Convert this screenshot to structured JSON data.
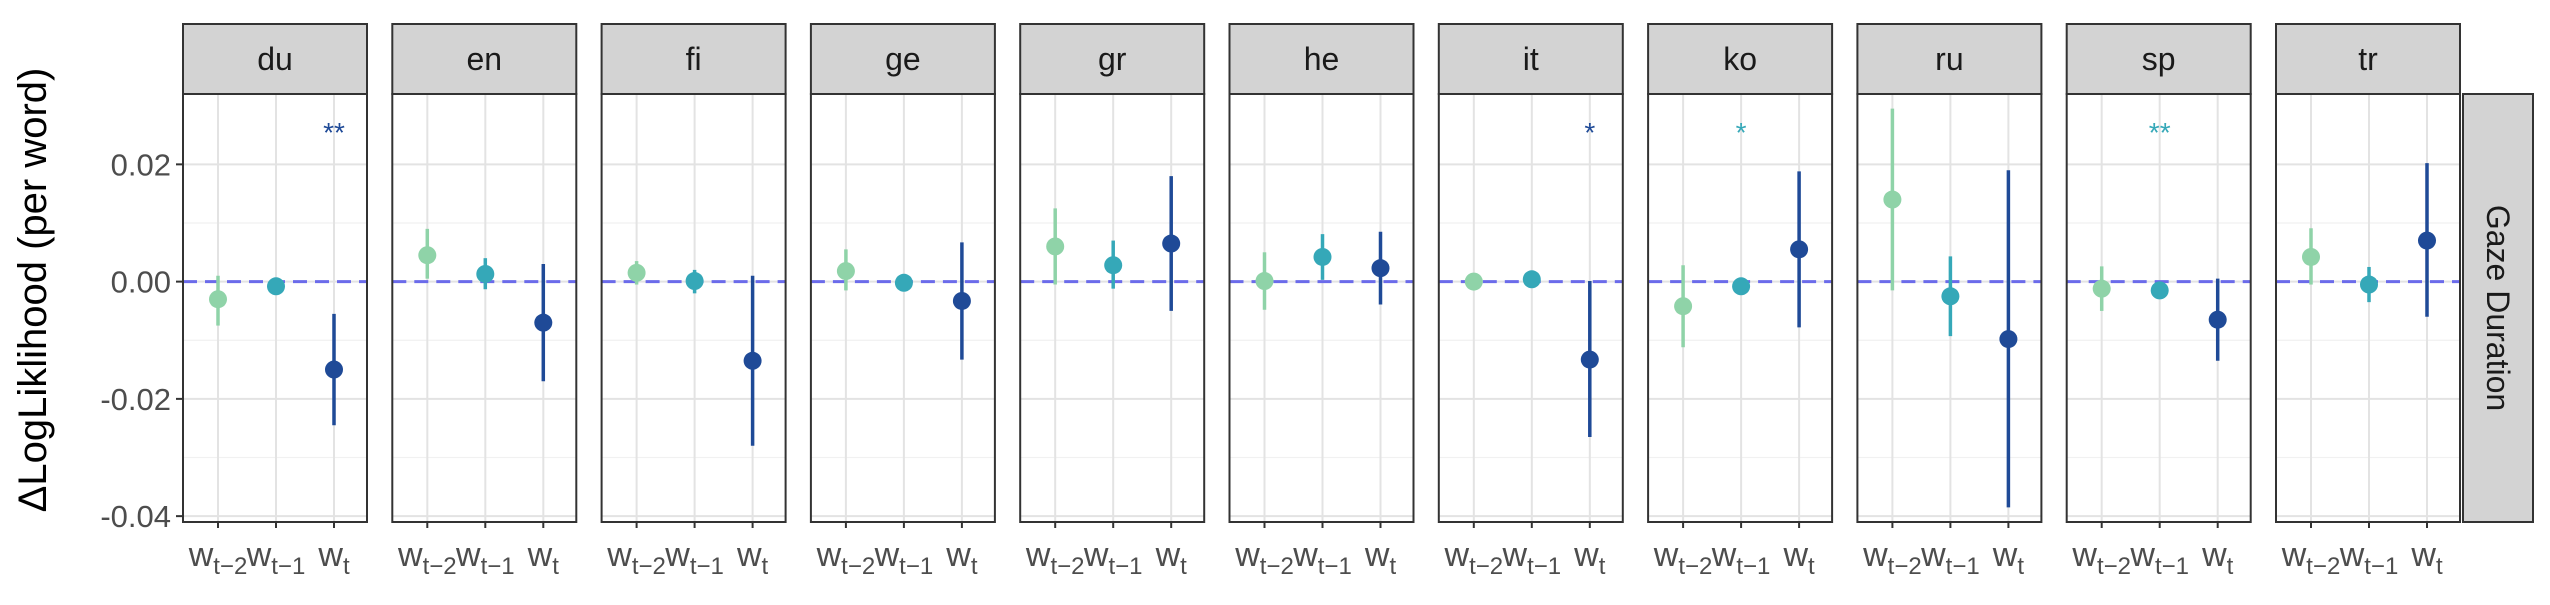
{
  "chart_data": {
    "type": "faceted-pointrange",
    "ylabel": "ΔLogLiklihood (per word)",
    "row_strip": "Gaze Duration",
    "ylim": [
      -0.041,
      0.032
    ],
    "yticks": [
      0.02,
      0.0,
      -0.02,
      -0.04
    ],
    "ytick_labels": [
      "0.02",
      "0.00",
      "-0.02",
      "-0.04"
    ],
    "reference_line": 0.0,
    "x_categories": [
      "w_{t-2}",
      "w_{t-1}",
      "w_t"
    ],
    "x_tick_labels": [
      {
        "base": "w",
        "sub": "t−2"
      },
      {
        "base": "w",
        "sub": "t−1"
      },
      {
        "base": "w",
        "sub": "t"
      }
    ],
    "colors": {
      "w_{t-2}": "#8fd3a8",
      "w_{t-1}": "#35a8b8",
      "w_t": "#1f4a97",
      "reference": "#6b6bea",
      "strip": "#d3d3d3"
    },
    "panels": [
      {
        "label": "du",
        "points": [
          {
            "x": "w_{t-2}",
            "y": -0.003,
            "lo": -0.0075,
            "hi": 0.001
          },
          {
            "x": "w_{t-1}",
            "y": -0.0008,
            "lo": -0.0015,
            "hi": -0.0001
          },
          {
            "x": "w_t",
            "y": -0.015,
            "lo": -0.0245,
            "hi": -0.0055
          }
        ],
        "sig": [
          {
            "x": "w_t",
            "label": "**"
          }
        ]
      },
      {
        "label": "en",
        "points": [
          {
            "x": "w_{t-2}",
            "y": 0.0045,
            "lo": 0.0005,
            "hi": 0.009
          },
          {
            "x": "w_{t-1}",
            "y": 0.0013,
            "lo": -0.0013,
            "hi": 0.004
          },
          {
            "x": "w_t",
            "y": -0.007,
            "lo": -0.017,
            "hi": 0.003
          }
        ],
        "sig": []
      },
      {
        "label": "fi",
        "points": [
          {
            "x": "w_{t-2}",
            "y": 0.0015,
            "lo": -0.0005,
            "hi": 0.0035
          },
          {
            "x": "w_{t-1}",
            "y": 0.0001,
            "lo": -0.002,
            "hi": 0.002
          },
          {
            "x": "w_t",
            "y": -0.0135,
            "lo": -0.028,
            "hi": 0.001
          }
        ],
        "sig": []
      },
      {
        "label": "ge",
        "points": [
          {
            "x": "w_{t-2}",
            "y": 0.0018,
            "lo": -0.0015,
            "hi": 0.0055
          },
          {
            "x": "w_{t-1}",
            "y": -0.0002,
            "lo": -0.001,
            "hi": 0.0006
          },
          {
            "x": "w_t",
            "y": -0.0033,
            "lo": -0.0133,
            "hi": 0.0067
          }
        ],
        "sig": []
      },
      {
        "label": "gr",
        "points": [
          {
            "x": "w_{t-2}",
            "y": 0.006,
            "lo": -0.0005,
            "hi": 0.0125
          },
          {
            "x": "w_{t-1}",
            "y": 0.0028,
            "lo": -0.0012,
            "hi": 0.007
          },
          {
            "x": "w_t",
            "y": 0.0065,
            "lo": -0.005,
            "hi": 0.018
          }
        ],
        "sig": []
      },
      {
        "label": "he",
        "points": [
          {
            "x": "w_{t-2}",
            "y": 0.0001,
            "lo": -0.0048,
            "hi": 0.005
          },
          {
            "x": "w_{t-1}",
            "y": 0.0042,
            "lo": 0.0003,
            "hi": 0.0081
          },
          {
            "x": "w_t",
            "y": 0.0023,
            "lo": -0.0039,
            "hi": 0.0085
          }
        ],
        "sig": []
      },
      {
        "label": "it",
        "points": [
          {
            "x": "w_{t-2}",
            "y": 0.0,
            "lo": -0.0008,
            "hi": 0.0008
          },
          {
            "x": "w_{t-1}",
            "y": 0.0004,
            "lo": -0.0004,
            "hi": 0.0012
          },
          {
            "x": "w_t",
            "y": -0.0133,
            "lo": -0.0265,
            "hi": 0.0001
          }
        ],
        "sig": [
          {
            "x": "w_t",
            "label": "*"
          }
        ]
      },
      {
        "label": "ko",
        "points": [
          {
            "x": "w_{t-2}",
            "y": -0.0042,
            "lo": -0.0112,
            "hi": 0.0028
          },
          {
            "x": "w_{t-1}",
            "y": -0.0008,
            "lo": -0.0015,
            "hi": -0.0001
          },
          {
            "x": "w_t",
            "y": 0.0055,
            "lo": -0.0078,
            "hi": 0.0188
          }
        ],
        "sig": [
          {
            "x": "w_{t-1}",
            "label": "*"
          }
        ]
      },
      {
        "label": "ru",
        "points": [
          {
            "x": "w_{t-2}",
            "y": 0.014,
            "lo": -0.0015,
            "hi": 0.0295
          },
          {
            "x": "w_{t-1}",
            "y": -0.0025,
            "lo": -0.0093,
            "hi": 0.0043
          },
          {
            "x": "w_t",
            "y": -0.0098,
            "lo": -0.0385,
            "hi": 0.019
          }
        ],
        "sig": []
      },
      {
        "label": "sp",
        "points": [
          {
            "x": "w_{t-2}",
            "y": -0.0012,
            "lo": -0.005,
            "hi": 0.0026
          },
          {
            "x": "w_{t-1}",
            "y": -0.0015,
            "lo": -0.0022,
            "hi": -0.0008
          },
          {
            "x": "w_t",
            "y": -0.0065,
            "lo": -0.0135,
            "hi": 0.0005
          }
        ],
        "sig": [
          {
            "x": "w_{t-1}",
            "label": "**"
          }
        ]
      },
      {
        "label": "tr",
        "points": [
          {
            "x": "w_{t-2}",
            "y": 0.0042,
            "lo": -0.0005,
            "hi": 0.0091
          },
          {
            "x": "w_{t-1}",
            "y": -0.0005,
            "lo": -0.0035,
            "hi": 0.0025
          },
          {
            "x": "w_t",
            "y": 0.007,
            "lo": -0.006,
            "hi": 0.0202
          }
        ],
        "sig": []
      }
    ]
  }
}
